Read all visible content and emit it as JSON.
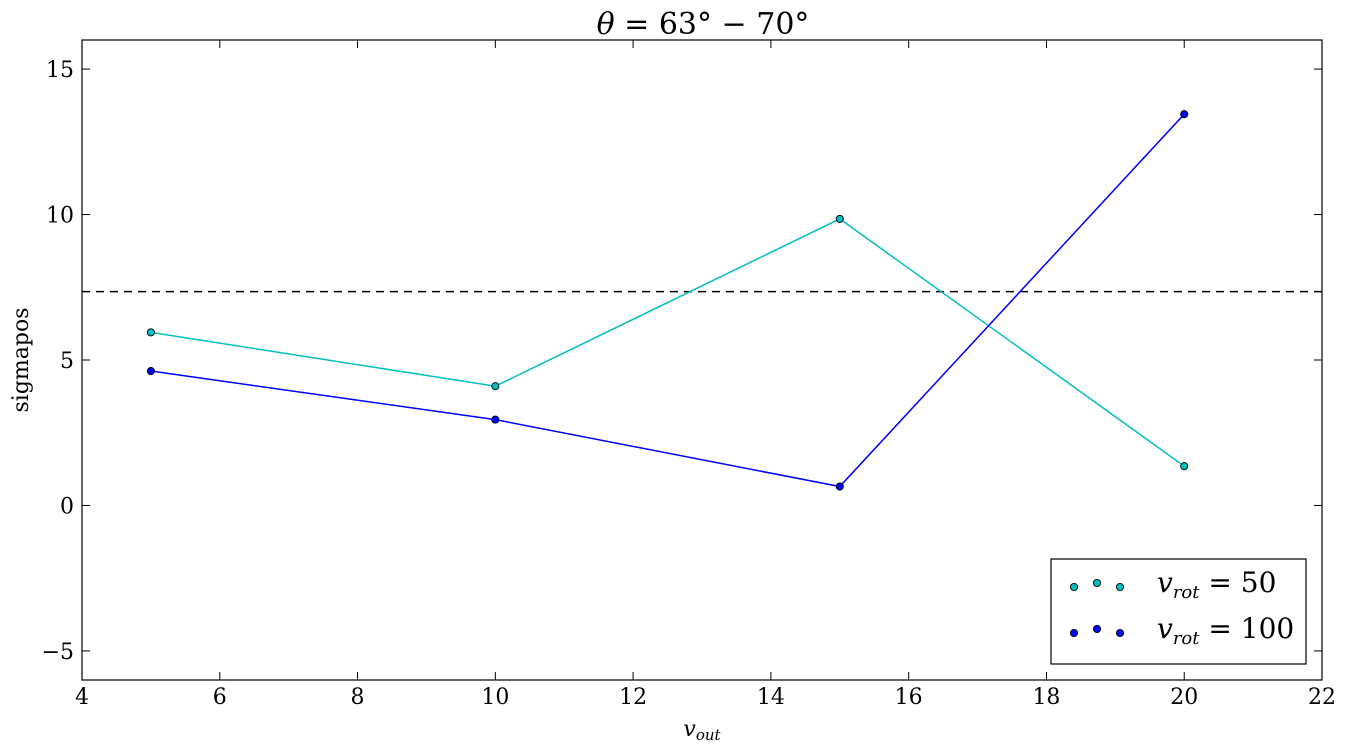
{
  "chart_data": {
    "type": "line",
    "title": "θ = 63° − 70°",
    "title_parts": {
      "symbol": "θ",
      "rest": " = 63° − 70°"
    },
    "xlabel": "v",
    "xlabel_sub": "out",
    "ylabel": "sigmapos",
    "xlim": [
      4,
      22
    ],
    "ylim": [
      -6,
      16
    ],
    "xticks": [
      4,
      6,
      8,
      10,
      12,
      14,
      16,
      18,
      20,
      22
    ],
    "yticks": [
      -5,
      0,
      5,
      10,
      15
    ],
    "xtick_labels": [
      "4",
      "6",
      "8",
      "10",
      "12",
      "14",
      "16",
      "18",
      "20",
      "22"
    ],
    "ytick_labels": [
      "−5",
      "0",
      "5",
      "10",
      "15"
    ],
    "grid": false,
    "legend_position": "bottom-right",
    "reference_line": {
      "y": 7.35,
      "style": "dashed",
      "color": "#000000"
    },
    "x": [
      5,
      10,
      15,
      20
    ],
    "series": [
      {
        "name": "v_rot = 50",
        "label_base": "v",
        "label_sub": "rot",
        "label_rest": " = 50",
        "color": "#00bfbf",
        "values": [
          5.95,
          4.1,
          9.85,
          1.35
        ]
      },
      {
        "name": "v_rot = 100",
        "label_base": "v",
        "label_sub": "rot",
        "label_rest": " = 100",
        "color": "#0000ff",
        "values": [
          4.62,
          2.95,
          0.65,
          13.45
        ]
      }
    ]
  }
}
